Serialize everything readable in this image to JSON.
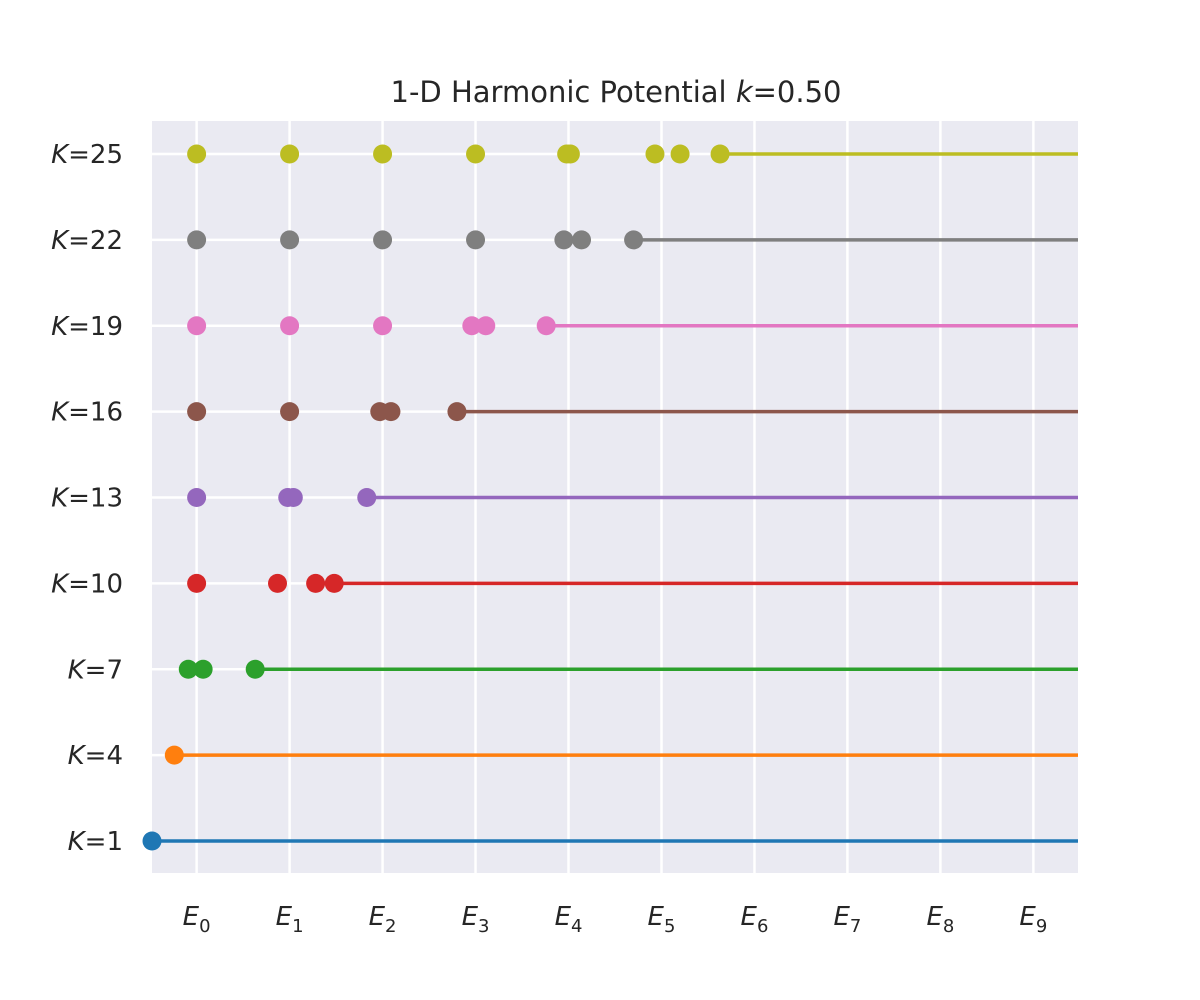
{
  "chart_data": {
    "type": "scatter",
    "title_prefix": "1-D Harmonic Potential ",
    "title_param": "k",
    "title_suffix": "=0.50",
    "xlim": [
      -0.48,
      9.48
    ],
    "grid": true,
    "x_ticks": [
      {
        "value": 0,
        "base": "E",
        "sub": "0"
      },
      {
        "value": 1,
        "base": "E",
        "sub": "1"
      },
      {
        "value": 2,
        "base": "E",
        "sub": "2"
      },
      {
        "value": 3,
        "base": "E",
        "sub": "3"
      },
      {
        "value": 4,
        "base": "E",
        "sub": "4"
      },
      {
        "value": 5,
        "base": "E",
        "sub": "5"
      },
      {
        "value": 6,
        "base": "E",
        "sub": "6"
      },
      {
        "value": 7,
        "base": "E",
        "sub": "7"
      },
      {
        "value": 8,
        "base": "E",
        "sub": "8"
      },
      {
        "value": 9,
        "base": "E",
        "sub": "9"
      }
    ],
    "series": [
      {
        "label_var": "K",
        "label_value": "=1",
        "color": "#1f77b4",
        "points": [
          -0.48
        ],
        "line_from": -0.48
      },
      {
        "label_var": "K",
        "label_value": "=4",
        "color": "#ff7f0e",
        "points": [
          -0.24
        ],
        "line_from": -0.24
      },
      {
        "label_var": "K",
        "label_value": "=7",
        "color": "#2ca02c",
        "points": [
          -0.09,
          0.07,
          0.63
        ],
        "line_from": 0.63
      },
      {
        "label_var": "K",
        "label_value": "=10",
        "color": "#d62728",
        "points": [
          0.0,
          0.87,
          1.28,
          1.48
        ],
        "line_from": 1.48
      },
      {
        "label_var": "K",
        "label_value": "=13",
        "color": "#9467bd",
        "points": [
          0.0,
          0.98,
          1.04,
          1.83
        ],
        "line_from": 1.83
      },
      {
        "label_var": "K",
        "label_value": "=16",
        "color": "#8c564b",
        "points": [
          0.0,
          1.0,
          1.97,
          2.09,
          2.8
        ],
        "line_from": 2.8
      },
      {
        "label_var": "K",
        "label_value": "=19",
        "color": "#e377c2",
        "points": [
          0.0,
          1.0,
          2.0,
          2.96,
          3.11,
          3.76
        ],
        "line_from": 3.76
      },
      {
        "label_var": "K",
        "label_value": "=22",
        "color": "#7f7f7f",
        "points": [
          0.0,
          1.0,
          2.0,
          3.0,
          3.95,
          4.14,
          4.7
        ],
        "line_from": 4.7
      },
      {
        "label_var": "K",
        "label_value": "=25",
        "color": "#bcbd22",
        "points": [
          0.0,
          1.0,
          2.0,
          3.0,
          3.98,
          4.02,
          4.93,
          5.2,
          5.63
        ],
        "line_from": 5.63
      }
    ]
  }
}
